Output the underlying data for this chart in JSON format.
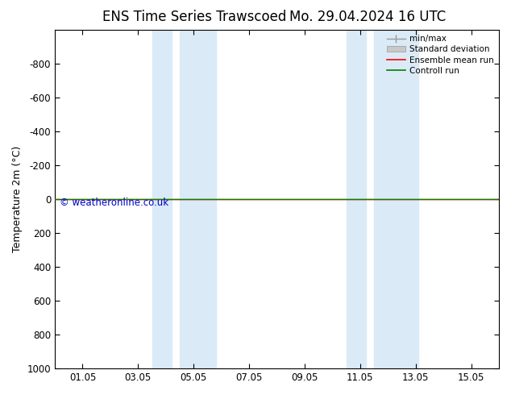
{
  "title_left": "ENS Time Series Trawscoed",
  "title_right": "Mo. 29.04.2024 16 UTC",
  "ylabel": "Temperature 2m (°C)",
  "ylim_top": -1000,
  "ylim_bottom": 1000,
  "yticks": [
    -800,
    -600,
    -400,
    -200,
    0,
    200,
    400,
    600,
    800,
    1000
  ],
  "xlim_start": 0,
  "xlim_end": 16,
  "xtick_positions": [
    1,
    3,
    5,
    7,
    9,
    11,
    13,
    15
  ],
  "xtick_labels": [
    "01.05",
    "03.05",
    "05.05",
    "07.05",
    "09.05",
    "11.05",
    "13.05",
    "15.05"
  ],
  "blue_bands": [
    {
      "x_start": 3.5,
      "x_end": 4.2
    },
    {
      "x_start": 4.5,
      "x_end": 5.8
    },
    {
      "x_start": 10.5,
      "x_end": 11.2
    },
    {
      "x_start": 11.5,
      "x_end": 13.1
    }
  ],
  "green_line_y": 0,
  "red_line_y": 0,
  "green_color": "#008000",
  "red_color": "#ff0000",
  "watermark": "© weatheronline.co.uk",
  "watermark_color": "#0000cc",
  "bg_color": "#ffffff",
  "plot_bg_color": "#ffffff",
  "band_color": "#daeaf7",
  "title_fontsize": 12,
  "axis_fontsize": 9,
  "tick_fontsize": 8.5
}
